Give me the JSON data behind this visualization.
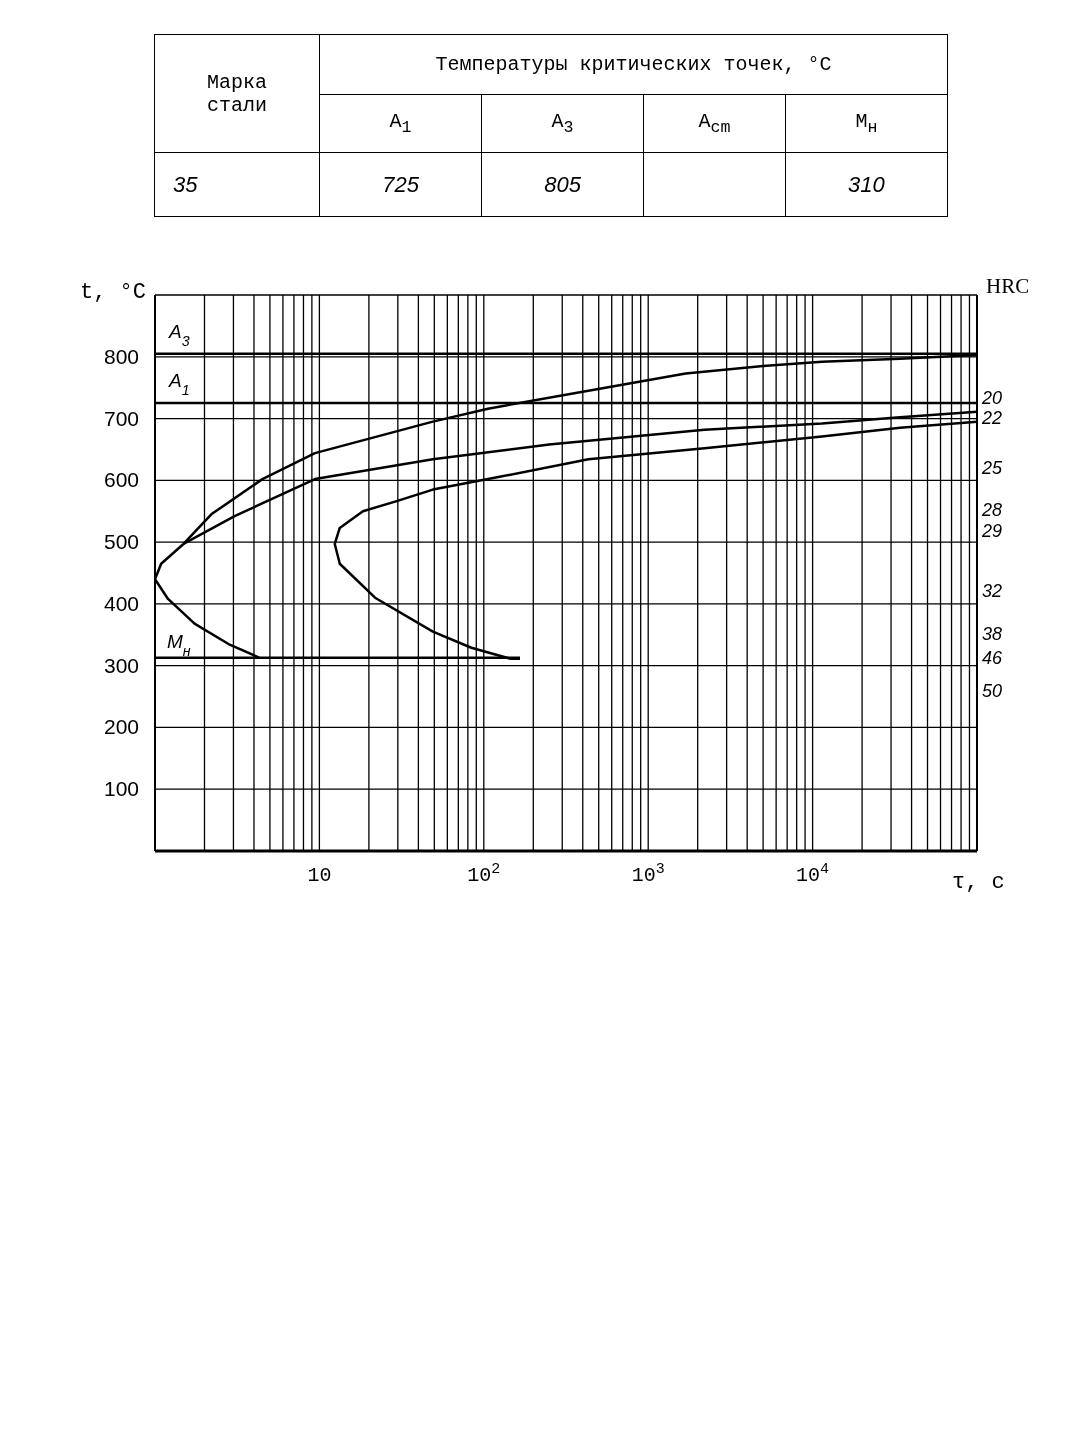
{
  "chart_data": {
    "type": "line",
    "xlabel": "τ, с",
    "ylabel": "t, °C",
    "log": "x",
    "grid": true,
    "marker": "none",
    "line_style": "solid",
    "xlim": [
      1,
      100000
    ],
    "annotations": [
      "Марка стали",
      "Температуры критических точек, °C",
      "A$_{1}$",
      "A$_{3}$",
      "A$_{cm}$",
      "M$_{н}$",
      "35",
      "725",
      "805",
      "310",
      "HRC",
      "20",
      "22",
      "25",
      "28",
      "29",
      "32",
      "38",
      "46",
      "50"
    ],
    "xticks": [
      {
        "value": 2,
        "label": null
      },
      {
        "value": 3,
        "label": null
      },
      {
        "value": 4,
        "label": null
      },
      {
        "value": 5,
        "label": null
      },
      {
        "value": 6,
        "label": null
      },
      {
        "value": 7,
        "label": null
      },
      {
        "value": 8,
        "label": null
      },
      {
        "value": 9,
        "label": null
      },
      {
        "value": 10,
        "label": "10"
      },
      {
        "value": 20,
        "label": null
      },
      {
        "value": 30,
        "label": null
      },
      {
        "value": 40,
        "label": null
      },
      {
        "value": 50,
        "label": null
      },
      {
        "value": 60,
        "label": null
      },
      {
        "value": 70,
        "label": null
      },
      {
        "value": 80,
        "label": null
      },
      {
        "value": 90,
        "label": null
      },
      {
        "value": 100,
        "label": "10$^{2}$"
      },
      {
        "value": 200,
        "label": null
      },
      {
        "value": 300,
        "label": null
      },
      {
        "value": 400,
        "label": null
      },
      {
        "value": 500,
        "label": null
      },
      {
        "value": 600,
        "label": null
      },
      {
        "value": 700,
        "label": null
      },
      {
        "value": 800,
        "label": null
      },
      {
        "value": 900,
        "label": null
      },
      {
        "value": 1000,
        "label": "10$^{3}$"
      },
      {
        "value": 2000,
        "label": null
      },
      {
        "value": 3000,
        "label": null
      },
      {
        "value": 4000,
        "label": null
      },
      {
        "value": 5000,
        "label": null
      },
      {
        "value": 6000,
        "label": null
      },
      {
        "value": 7000,
        "label": null
      },
      {
        "value": 8000,
        "label": null
      },
      {
        "value": 9000,
        "label": null
      },
      {
        "value": 10000,
        "label": "10$^{4}$"
      },
      {
        "value": 20000,
        "label": null
      },
      {
        "value": 30000,
        "label": null
      },
      {
        "value": 40000,
        "label": null
      },
      {
        "value": 50000,
        "label": null
      },
      {
        "value": 60000,
        "label": null
      },
      {
        "value": 70000,
        "label": null
      },
      {
        "value": 80000,
        "label": null
      },
      {
        "value": 90000,
        "label": null
      }
    ],
    "ylim": [
      0,
      900
    ],
    "yticks": [
      100,
      200,
      300,
      400,
      500,
      600,
      700,
      800
    ],
    "series": [
      {
        "color": "#000000",
        "x": [
          100000,
          34000,
          11400,
          5000,
          1690,
          433,
          106,
          49,
          9.4,
          4.5,
          2.2,
          1.49,
          1.09,
          1,
          1.2,
          1.74,
          2.8,
          4.3
        ],
        "values": [
          803,
          797,
          792,
          785,
          773,
          745,
          716,
          695,
          644,
          602,
          545,
          497,
          465,
          440,
          408,
          368,
          335,
          313
        ]
      },
      {
        "color": "#000000",
        "x": [
          100000,
          34000,
          11400,
          2200,
          250,
          49,
          9.4,
          3.05,
          1.49
        ],
        "values": [
          711,
          702,
          692,
          682,
          658,
          634,
          602,
          542,
          497
        ]
      },
      {
        "color": "#000000",
        "x": [
          100000,
          34000,
          11400,
          2200,
          433,
          106,
          49,
          29.2,
          18.4,
          13.3,
          12.4,
          13.3,
          21.8,
          49,
          84,
          146,
          166
        ],
        "values": [
          695,
          685,
          671,
          652,
          634,
          602,
          585,
          566,
          550,
          523,
          497,
          465,
          410,
          355,
          329,
          311,
          311
        ]
      },
      {
        "name": "M$_{н}$",
        "color": "#000000",
        "x": [
          1,
          166
        ],
        "values": [
          313,
          313
        ]
      }
    ],
    "ref_lines": [
      {
        "axis": "y",
        "value": 805,
        "label": "A$_{3}$",
        "color": "#000000"
      },
      {
        "axis": "y",
        "value": 725,
        "label": "A$_{1}$",
        "color": "#000000"
      }
    ]
  }
}
